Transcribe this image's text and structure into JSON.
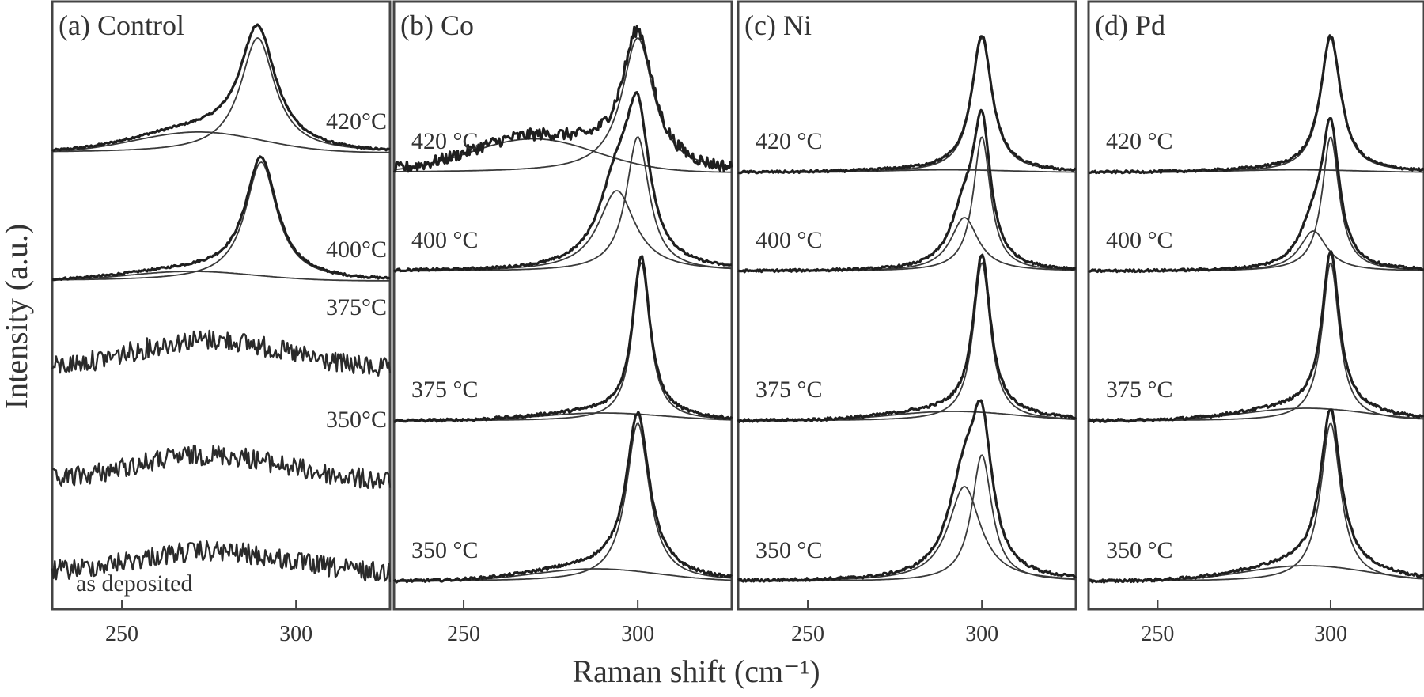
{
  "chart_data": {
    "type": "line",
    "xlabel": "Raman shift (cm⁻¹)",
    "ylabel": "Intensity (a.u.)",
    "xlim": [
      230,
      327
    ],
    "xticks": [
      250,
      300
    ],
    "grid": false,
    "panels": [
      {
        "label": "(a) Control",
        "series": [
          {
            "label": "420°C",
            "kind": "peak",
            "center": 289,
            "fwhm": 12,
            "amplitude": 1.0,
            "broad_center": 272,
            "broad_amp": 0.18
          },
          {
            "label": "400°C",
            "kind": "peak",
            "center": 290,
            "fwhm": 11,
            "amplitude": 1.0,
            "broad_center": 270,
            "broad_amp": 0.08
          },
          {
            "label": "375°C",
            "kind": "amorphous",
            "center": 275,
            "amplitude": 0.55
          },
          {
            "label": "350°C",
            "kind": "amorphous",
            "center": 275,
            "amplitude": 0.5
          },
          {
            "label": "as deposited",
            "kind": "amorphous",
            "center": 275,
            "amplitude": 0.4
          }
        ]
      },
      {
        "label": "(b) Co",
        "series": [
          {
            "label": "420 °C",
            "kind": "peak",
            "center": 300,
            "fwhm": 11,
            "amplitude": 1.0,
            "broad_center": 270,
            "broad_amp": 0.25,
            "noisy": true
          },
          {
            "label": "400 °C",
            "kind": "doublet",
            "center": 300,
            "center2": 294,
            "fwhm": 8,
            "amplitude": 1.0,
            "amplitude2": 0.6
          },
          {
            "label": "375 °C",
            "kind": "peak",
            "center": 301,
            "fwhm": 6,
            "amplitude": 1.0,
            "broad_center": 290,
            "broad_amp": 0.05
          },
          {
            "label": "350 °C",
            "kind": "peak",
            "center": 300,
            "fwhm": 8,
            "amplitude": 1.0,
            "broad_center": 288,
            "broad_amp": 0.08
          }
        ]
      },
      {
        "label": "(c) Ni",
        "series": [
          {
            "label": "420 °C",
            "kind": "peak",
            "center": 300,
            "fwhm": 7,
            "amplitude": 1.0,
            "broad_center": 290,
            "broad_amp": 0.02
          },
          {
            "label": "400 °C",
            "kind": "doublet",
            "center": 300,
            "center2": 295,
            "fwhm": 6,
            "amplitude": 1.0,
            "amplitude2": 0.4
          },
          {
            "label": "375 °C",
            "kind": "peak",
            "center": 300,
            "fwhm": 6,
            "amplitude": 1.0,
            "broad_center": 292,
            "broad_amp": 0.06
          },
          {
            "label": "350 °C",
            "kind": "doublet",
            "center": 300,
            "center2": 295,
            "fwhm": 7,
            "amplitude": 0.8,
            "amplitude2": 0.6
          }
        ]
      },
      {
        "label": "(d) Pd",
        "series": [
          {
            "label": "420 °C",
            "kind": "peak",
            "center": 300,
            "fwhm": 7,
            "amplitude": 1.0,
            "broad_center": 290,
            "broad_amp": 0.02
          },
          {
            "label": "400 °C",
            "kind": "doublet",
            "center": 300,
            "center2": 295,
            "fwhm": 6,
            "amplitude": 1.0,
            "amplitude2": 0.3
          },
          {
            "label": "375 °C",
            "kind": "peak",
            "center": 300,
            "fwhm": 6,
            "amplitude": 1.0,
            "broad_center": 293,
            "broad_amp": 0.08
          },
          {
            "label": "350 °C",
            "kind": "peak",
            "center": 300,
            "fwhm": 7,
            "amplitude": 1.0,
            "broad_center": 293,
            "broad_amp": 0.1
          }
        ]
      }
    ]
  }
}
